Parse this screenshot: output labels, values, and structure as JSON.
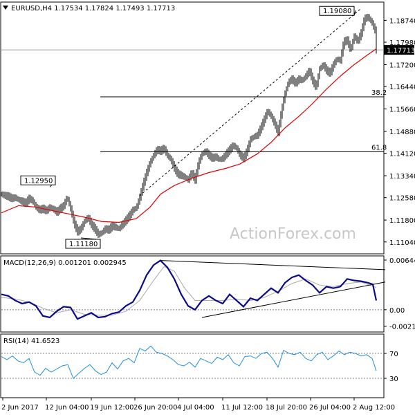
{
  "chart_data": {
    "type": "candlestick",
    "symbol": "EURUSD",
    "timeframe": "H4",
    "ohlc": {
      "open": "1.17534",
      "high": "1.17824",
      "low": "1.17493",
      "close": "1.17713"
    },
    "watermark": "ActionForex.com",
    "price_axis": {
      "ylim": [
        1.1065,
        1.1935
      ],
      "ticks": [
        "1.18740",
        "1.17980",
        "1.17200",
        "1.16440",
        "1.15660",
        "1.14880",
        "1.14120",
        "1.13340",
        "1.12580",
        "1.11800",
        "1.11040"
      ],
      "current_price": "1.17713"
    },
    "x_labels": [
      "2 Jun 2017",
      "12 Jun 04:00",
      "19 Jun 12:00",
      "26 Jun 20:00",
      "4 Jul 04:00",
      "11 Jul 12:00",
      "18 Jul 20:00",
      "26 Jul 04:00",
      "2 Aug 12:00"
    ],
    "price_series": {
      "points": [
        [
          0,
          1.127
        ],
        [
          5,
          1.1265
        ],
        [
          10,
          1.1262
        ],
        [
          15,
          1.1255
        ],
        [
          20,
          1.1258
        ],
        [
          25,
          1.125
        ],
        [
          30,
          1.1245
        ],
        [
          35,
          1.1238
        ],
        [
          40,
          1.1255
        ],
        [
          45,
          1.1248
        ],
        [
          50,
          1.1225
        ],
        [
          55,
          1.1215
        ],
        [
          60,
          1.122
        ],
        [
          65,
          1.1212
        ],
        [
          70,
          1.1225
        ],
        [
          75,
          1.1218
        ],
        [
          80,
          1.1208
        ],
        [
          85,
          1.122
        ],
        [
          90,
          1.123
        ],
        [
          95,
          1.126
        ],
        [
          100,
          1.122
        ],
        [
          105,
          1.117
        ],
        [
          110,
          1.114
        ],
        [
          115,
          1.115
        ],
        [
          120,
          1.1175
        ],
        [
          125,
          1.119
        ],
        [
          130,
          1.1165
        ],
        [
          135,
          1.115
        ],
        [
          140,
          1.113
        ],
        [
          145,
          1.1135
        ],
        [
          150,
          1.115
        ],
        [
          155,
          1.1145
        ],
        [
          160,
          1.116
        ],
        [
          165,
          1.1155
        ],
        [
          170,
          1.115
        ],
        [
          175,
          1.1165
        ],
        [
          180,
          1.118
        ],
        [
          185,
          1.1195
        ],
        [
          190,
          1.1215
        ],
        [
          195,
          1.1222
        ],
        [
          200,
          1.126
        ],
        [
          205,
          1.1305
        ],
        [
          210,
          1.1345
        ],
        [
          215,
          1.138
        ],
        [
          220,
          1.1405
        ],
        [
          225,
          1.1425
        ],
        [
          230,
          1.142
        ],
        [
          235,
          1.143
        ],
        [
          240,
          1.1405
        ],
        [
          245,
          1.139
        ],
        [
          250,
          1.136
        ],
        [
          255,
          1.134
        ],
        [
          260,
          1.1335
        ],
        [
          265,
          1.133
        ],
        [
          270,
          1.132
        ],
        [
          275,
          1.1345
        ],
        [
          280,
          1.132
        ],
        [
          285,
          1.138
        ],
        [
          290,
          1.141
        ],
        [
          295,
          1.142
        ],
        [
          300,
          1.1405
        ],
        [
          305,
          1.1395
        ],
        [
          310,
          1.14
        ],
        [
          315,
          1.139
        ],
        [
          320,
          1.1395
        ],
        [
          325,
          1.141
        ],
        [
          330,
          1.1425
        ],
        [
          335,
          1.144
        ],
        [
          340,
          1.143
        ],
        [
          345,
          1.1405
        ],
        [
          350,
          1.1395
        ],
        [
          355,
          1.142
        ],
        [
          360,
          1.146
        ],
        [
          365,
          1.147
        ],
        [
          370,
          1.1475
        ],
        [
          375,
          1.15
        ],
        [
          380,
          1.153
        ],
        [
          385,
          1.156
        ],
        [
          390,
          1.154
        ],
        [
          395,
          1.1515
        ],
        [
          400,
          1.1485
        ],
        [
          405,
          1.156
        ],
        [
          410,
          1.162
        ],
        [
          415,
          1.166
        ],
        [
          420,
          1.167
        ],
        [
          425,
          1.1655
        ],
        [
          430,
          1.167
        ],
        [
          435,
          1.1665
        ],
        [
          440,
          1.168
        ],
        [
          445,
          1.17
        ],
        [
          450,
          1.1665
        ],
        [
          455,
          1.164
        ],
        [
          460,
          1.1705
        ],
        [
          465,
          1.172
        ],
        [
          470,
          1.17
        ],
        [
          475,
          1.169
        ],
        [
          480,
          1.172
        ],
        [
          485,
          1.174
        ],
        [
          490,
          1.1735
        ],
        [
          495,
          1.18
        ],
        [
          500,
          1.1805
        ],
        [
          505,
          1.177
        ],
        [
          510,
          1.182
        ],
        [
          515,
          1.18
        ],
        [
          520,
          1.183
        ],
        [
          525,
          1.188
        ],
        [
          530,
          1.1885
        ],
        [
          535,
          1.187
        ],
        [
          540,
          1.184
        ],
        [
          542,
          1.1771
        ]
      ],
      "ma": [
        [
          0,
          1.1205
        ],
        [
          25,
          1.123
        ],
        [
          50,
          1.1225
        ],
        [
          75,
          1.1212
        ],
        [
          100,
          1.12
        ],
        [
          120,
          1.119
        ],
        [
          145,
          1.1175
        ],
        [
          170,
          1.1172
        ],
        [
          195,
          1.1185
        ],
        [
          215,
          1.1225
        ],
        [
          230,
          1.127
        ],
        [
          250,
          1.13
        ],
        [
          275,
          1.1325
        ],
        [
          300,
          1.1345
        ],
        [
          325,
          1.136
        ],
        [
          345,
          1.1375
        ],
        [
          370,
          1.141
        ],
        [
          390,
          1.145
        ],
        [
          410,
          1.15
        ],
        [
          430,
          1.154
        ],
        [
          450,
          1.1585
        ],
        [
          470,
          1.1635
        ],
        [
          490,
          1.168
        ],
        [
          510,
          1.172
        ],
        [
          530,
          1.1755
        ],
        [
          542,
          1.1775
        ]
      ]
    },
    "annotations": [
      {
        "text": "1.19080",
        "kind": "swing-high",
        "x": 512,
        "price": 1.1908
      },
      {
        "text": "1.12950",
        "kind": "swing-high",
        "x": 70,
        "price": 1.1295
      },
      {
        "text": "1.11180",
        "kind": "swing-low",
        "x": 115,
        "price": 1.1118
      }
    ],
    "fibonacci": [
      {
        "label": "38.2",
        "price": 1.1608
      },
      {
        "label": "61.8",
        "price": 1.1417
      }
    ],
    "channel_line": [
      [
        200,
        1.1265
      ],
      [
        520,
        1.1915
      ]
    ],
    "macd": {
      "label": "MACD(12,26,9) 0.001201 0.002945",
      "ylim": [
        -0.0028,
        0.0069
      ],
      "ticks": [
        "0.006449",
        "0.00",
        "-0.002134"
      ],
      "macd_points": [
        [
          0,
          0.002
        ],
        [
          10,
          0.0018
        ],
        [
          20,
          0.0012
        ],
        [
          30,
          0.0008
        ],
        [
          40,
          0.001
        ],
        [
          50,
          0.0005
        ],
        [
          60,
          -0.0008
        ],
        [
          70,
          -0.001
        ],
        [
          80,
          -0.0002
        ],
        [
          90,
          0.0004
        ],
        [
          100,
          0.0003
        ],
        [
          110,
          -0.0012
        ],
        [
          120,
          -0.0008
        ],
        [
          130,
          -0.0004
        ],
        [
          140,
          -0.001
        ],
        [
          150,
          -0.0009
        ],
        [
          160,
          -0.0005
        ],
        [
          170,
          -0.0003
        ],
        [
          180,
          0.0005
        ],
        [
          190,
          0.001
        ],
        [
          200,
          0.0025
        ],
        [
          210,
          0.0045
        ],
        [
          220,
          0.0058
        ],
        [
          230,
          0.0064
        ],
        [
          240,
          0.0055
        ],
        [
          250,
          0.004
        ],
        [
          260,
          0.002
        ],
        [
          270,
          0.0005
        ],
        [
          280,
          0.0
        ],
        [
          290,
          0.0012
        ],
        [
          300,
          0.0018
        ],
        [
          310,
          0.0012
        ],
        [
          320,
          0.0008
        ],
        [
          330,
          0.002
        ],
        [
          340,
          0.0012
        ],
        [
          350,
          0.0004
        ],
        [
          360,
          0.0015
        ],
        [
          370,
          0.0012
        ],
        [
          380,
          0.002
        ],
        [
          390,
          0.0028
        ],
        [
          400,
          0.0022
        ],
        [
          410,
          0.0035
        ],
        [
          420,
          0.0042
        ],
        [
          430,
          0.0045
        ],
        [
          440,
          0.0038
        ],
        [
          450,
          0.0032
        ],
        [
          460,
          0.0022
        ],
        [
          470,
          0.003
        ],
        [
          480,
          0.0028
        ],
        [
          490,
          0.003
        ],
        [
          500,
          0.004
        ],
        [
          510,
          0.0038
        ],
        [
          520,
          0.0037
        ],
        [
          530,
          0.0035
        ],
        [
          537,
          0.0033
        ],
        [
          542,
          0.0012
        ]
      ],
      "signal_points": [
        [
          0,
          0.0016
        ],
        [
          20,
          0.0014
        ],
        [
          40,
          0.001
        ],
        [
          60,
          0.0002
        ],
        [
          80,
          -0.0004
        ],
        [
          100,
          0.0
        ],
        [
          120,
          -0.0006
        ],
        [
          140,
          -0.0007
        ],
        [
          160,
          -0.0007
        ],
        [
          180,
          -0.0002
        ],
        [
          200,
          0.0012
        ],
        [
          220,
          0.0038
        ],
        [
          235,
          0.0056
        ],
        [
          250,
          0.005
        ],
        [
          265,
          0.0028
        ],
        [
          280,
          0.0012
        ],
        [
          300,
          0.0012
        ],
        [
          320,
          0.0012
        ],
        [
          340,
          0.0014
        ],
        [
          360,
          0.0012
        ],
        [
          380,
          0.0016
        ],
        [
          400,
          0.0024
        ],
        [
          420,
          0.0034
        ],
        [
          440,
          0.004
        ],
        [
          460,
          0.0032
        ],
        [
          480,
          0.003
        ],
        [
          500,
          0.0034
        ],
        [
          520,
          0.0036
        ],
        [
          542,
          0.0029
        ]
      ],
      "resistance_line": [
        [
          230,
          0.0064
        ],
        [
          555,
          0.0052
        ]
      ],
      "support_line": [
        [
          290,
          -0.001
        ],
        [
          555,
          0.0036
        ]
      ]
    },
    "rsi": {
      "label": "RSI(14) 41.6523",
      "ylim": [
        0,
        100
      ],
      "levels": [
        70,
        30
      ],
      "points": [
        [
          0,
          65
        ],
        [
          8,
          60
        ],
        [
          16,
          66
        ],
        [
          24,
          58
        ],
        [
          32,
          55
        ],
        [
          40,
          62
        ],
        [
          48,
          40
        ],
        [
          56,
          35
        ],
        [
          64,
          46
        ],
        [
          72,
          40
        ],
        [
          80,
          45
        ],
        [
          88,
          50
        ],
        [
          96,
          52
        ],
        [
          104,
          30
        ],
        [
          112,
          38
        ],
        [
          120,
          46
        ],
        [
          128,
          52
        ],
        [
          136,
          42
        ],
        [
          144,
          36
        ],
        [
          152,
          40
        ],
        [
          160,
          55
        ],
        [
          168,
          45
        ],
        [
          176,
          58
        ],
        [
          184,
          62
        ],
        [
          192,
          55
        ],
        [
          200,
          78
        ],
        [
          208,
          74
        ],
        [
          216,
          82
        ],
        [
          224,
          72
        ],
        [
          232,
          70
        ],
        [
          240,
          66
        ],
        [
          248,
          60
        ],
        [
          256,
          52
        ],
        [
          264,
          50
        ],
        [
          272,
          56
        ],
        [
          280,
          48
        ],
        [
          288,
          62
        ],
        [
          296,
          58
        ],
        [
          304,
          54
        ],
        [
          312,
          64
        ],
        [
          320,
          60
        ],
        [
          328,
          68
        ],
        [
          336,
          55
        ],
        [
          344,
          50
        ],
        [
          352,
          65
        ],
        [
          360,
          66
        ],
        [
          368,
          62
        ],
        [
          376,
          70
        ],
        [
          384,
          72
        ],
        [
          392,
          62
        ],
        [
          400,
          48
        ],
        [
          408,
          75
        ],
        [
          416,
          70
        ],
        [
          424,
          68
        ],
        [
          432,
          72
        ],
        [
          440,
          62
        ],
        [
          448,
          58
        ],
        [
          456,
          68
        ],
        [
          464,
          72
        ],
        [
          472,
          60
        ],
        [
          480,
          66
        ],
        [
          488,
          74
        ],
        [
          496,
          68
        ],
        [
          504,
          72
        ],
        [
          512,
          70
        ],
        [
          520,
          66
        ],
        [
          528,
          68
        ],
        [
          536,
          62
        ],
        [
          542,
          42
        ]
      ]
    }
  }
}
